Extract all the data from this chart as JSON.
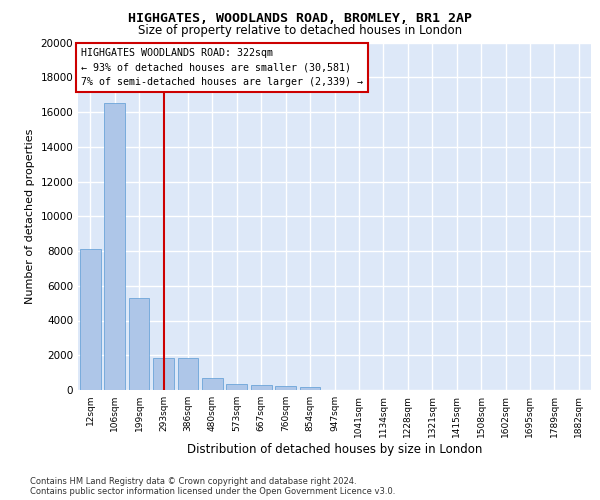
{
  "title": "HIGHGATES, WOODLANDS ROAD, BROMLEY, BR1 2AP",
  "subtitle": "Size of property relative to detached houses in London",
  "xlabel": "Distribution of detached houses by size in London",
  "ylabel": "Number of detached properties",
  "categories": [
    "12sqm",
    "106sqm",
    "199sqm",
    "293sqm",
    "386sqm",
    "480sqm",
    "573sqm",
    "667sqm",
    "760sqm",
    "854sqm",
    "947sqm",
    "1041sqm",
    "1134sqm",
    "1228sqm",
    "1321sqm",
    "1415sqm",
    "1508sqm",
    "1602sqm",
    "1695sqm",
    "1789sqm",
    "1882sqm"
  ],
  "values": [
    8100,
    16500,
    5300,
    1850,
    1850,
    700,
    350,
    280,
    230,
    180,
    0,
    0,
    0,
    0,
    0,
    0,
    0,
    0,
    0,
    0,
    0
  ],
  "bar_color": "#aec6e8",
  "bar_edge_color": "#5a9bd5",
  "vline_x": 3.0,
  "vline_color": "#cc0000",
  "annotation_box_text": "HIGHGATES WOODLANDS ROAD: 322sqm\n← 93% of detached houses are smaller (30,581)\n7% of semi-detached houses are larger (2,339) →",
  "annotation_box_color": "#cc0000",
  "ylim": [
    0,
    20000
  ],
  "yticks": [
    0,
    2000,
    4000,
    6000,
    8000,
    10000,
    12000,
    14000,
    16000,
    18000,
    20000
  ],
  "bg_color": "#dde8f8",
  "grid_color": "#ffffff",
  "footer_line1": "Contains HM Land Registry data © Crown copyright and database right 2024.",
  "footer_line2": "Contains public sector information licensed under the Open Government Licence v3.0."
}
